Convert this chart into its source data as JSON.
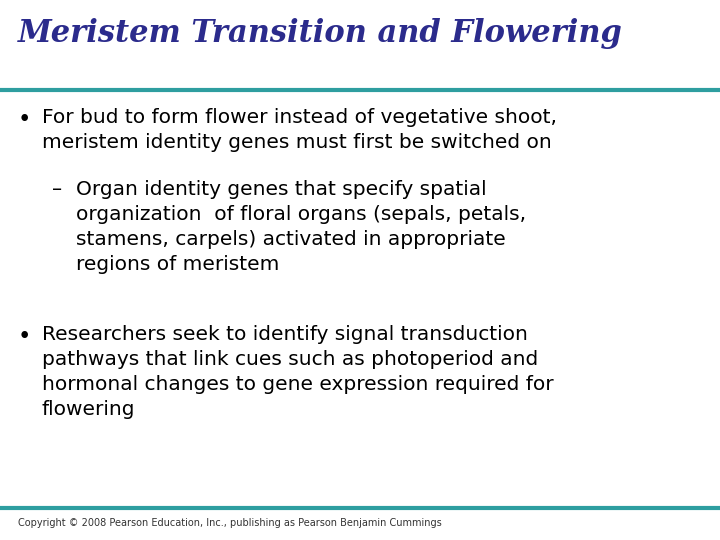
{
  "title": "Meristem Transition and Flowering",
  "title_color": "#2B2B8C",
  "title_fontsize": 22,
  "title_style": "italic",
  "title_weight": "bold",
  "title_font": "serif",
  "line_color": "#2E9EA0",
  "line_thickness": 3.0,
  "background_color": "#FFFFFF",
  "bullet_color": "#000000",
  "bullet_fontsize": 14.5,
  "bullet_font": "sans-serif",
  "bullet1_lines": [
    "For bud to form flower instead of vegetative shoot,",
    "meristem identity genes must first be switched on"
  ],
  "sub_bullet_lines": [
    "Organ identity genes that specify spatial",
    "organization  of floral organs (sepals, petals,",
    "stamens, carpels) activated in appropriate",
    "regions of meristem"
  ],
  "bullet2_lines": [
    "Researchers seek to identify signal transduction",
    "pathways that link cues such as photoperiod and",
    "hormonal changes to gene expression required for",
    "flowering"
  ],
  "copyright": "Copyright © 2008 Pearson Education, Inc., publishing as Pearson Benjamin Cummings",
  "copyright_fontsize": 7,
  "copyright_color": "#333333"
}
